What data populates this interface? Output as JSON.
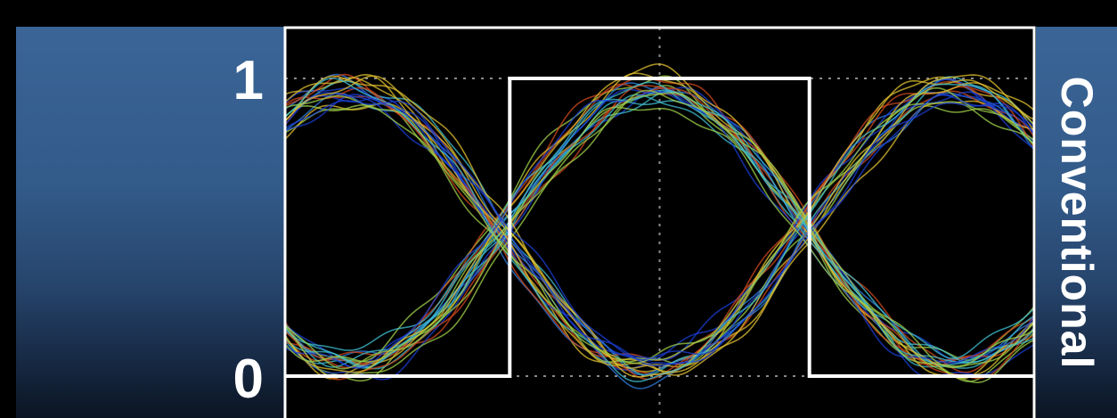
{
  "chart_data": {
    "type": "line",
    "title": "",
    "xlabel": "",
    "ylabel": "",
    "ylim": [
      0,
      1
    ],
    "yticks": [
      "1",
      "0"
    ],
    "y_tick_values": [
      1,
      0
    ],
    "side_label": "Conventional",
    "grid": "dotted lines at 0, 1 and center of x-axis",
    "legend": "none",
    "series": [
      {
        "name": "",
        "kind": "step",
        "color": "#ffffff",
        "x": [
          0,
          0.3,
          0.3,
          0.7,
          0.7,
          1
        ],
        "values": [
          0,
          0,
          1,
          1,
          0,
          0
        ]
      }
    ],
    "eye_pattern": {
      "description_traces": "overlaid noisy sinusoidal traces, blue to red density coloring",
      "crossings_x": [
        0.29,
        0.695
      ],
      "trace_count": 40,
      "colors": [
        "#1a3fd6",
        "#2f7de0",
        "#3fbfd0",
        "#9fd04a",
        "#e0c030",
        "#d24a1e"
      ]
    }
  }
}
